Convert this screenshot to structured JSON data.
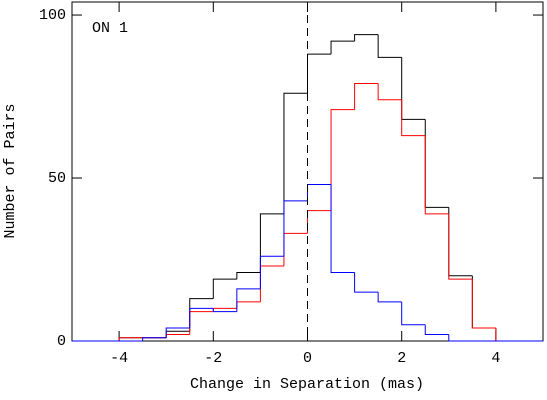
{
  "chart_data": {
    "type": "histogram",
    "xlabel": "Change in Separation (mas)",
    "ylabel": "Number of Pairs",
    "annotation": "ON 1",
    "bins": [
      -5,
      -4.5,
      -4,
      -3.5,
      -3,
      -2.5,
      -2,
      -1.5,
      -1,
      -0.5,
      0,
      0.5,
      1,
      1.5,
      2,
      2.5,
      3,
      3.5,
      4,
      4.5,
      5
    ],
    "series": [
      {
        "color": "#000000",
        "values": [
          0,
          0,
          1,
          1,
          3,
          13,
          19,
          21,
          39,
          76,
          88,
          92,
          94,
          87,
          68,
          41,
          20,
          4,
          0,
          0
        ]
      },
      {
        "color": "#ff0000",
        "values": [
          0,
          0,
          1,
          1,
          2,
          9,
          10,
          12,
          23,
          33,
          40,
          71,
          79,
          74,
          63,
          39,
          19,
          4,
          0,
          0
        ]
      },
      {
        "color": "#0000ff",
        "values": [
          0,
          0,
          0,
          1,
          4,
          10,
          9,
          16,
          26,
          43,
          48,
          21,
          15,
          12,
          5,
          2,
          0,
          0,
          0,
          0
        ]
      }
    ],
    "xlim": [
      -5,
      5
    ],
    "ylim": [
      0,
      104
    ],
    "xticks": [
      -4,
      -2,
      0,
      2,
      4
    ],
    "yticks": [
      0,
      50,
      100
    ],
    "vline": 0
  }
}
